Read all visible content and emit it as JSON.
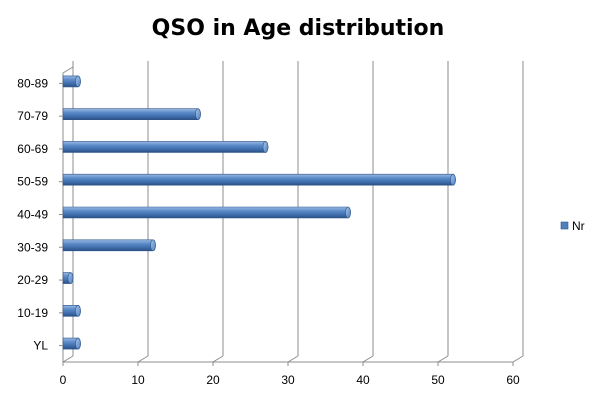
{
  "chart_data": {
    "type": "bar",
    "orientation": "horizontal",
    "title": "QSO in Age distribution",
    "categories": [
      "YL",
      "10-19",
      "20-29",
      "30-39",
      "40-49",
      "50-59",
      "60-69",
      "70-79",
      "80-89"
    ],
    "series": [
      {
        "name": "Nr",
        "values": [
          2,
          2,
          1,
          12,
          38,
          52,
          27,
          18,
          2
        ],
        "color": "#4f81bd"
      }
    ],
    "xlim": [
      0,
      60
    ],
    "xticks": [
      0,
      10,
      20,
      30,
      40,
      50,
      60
    ],
    "grid": true,
    "legend_position": "right",
    "style": "3d-cylinder"
  }
}
